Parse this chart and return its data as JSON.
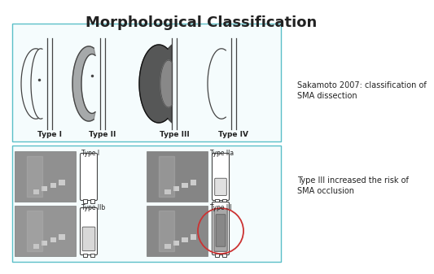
{
  "title": "Morphological Classification",
  "title_fontsize": 13,
  "title_fontweight": "bold",
  "background_color": "#ffffff",
  "panel1_facecolor": "#f5fcfd",
  "panel2_facecolor": "#f5fcfd",
  "border_color": "#5bbfc8",
  "top_labels": [
    "Type I",
    "Type II",
    "Type III",
    "Type IV"
  ],
  "top_annotation_line1": "Sakamoto 2007: classification of",
  "top_annotation_line2": "SMA dissection",
  "bottom_annotation_line1": "Type III increased the risk of",
  "bottom_annotation_line2": "SMA occlusion",
  "text_color": "#222222",
  "annotation_fontsize": 7.0,
  "label_fontsize": 6.5,
  "sublabel_fontsize": 5.5
}
